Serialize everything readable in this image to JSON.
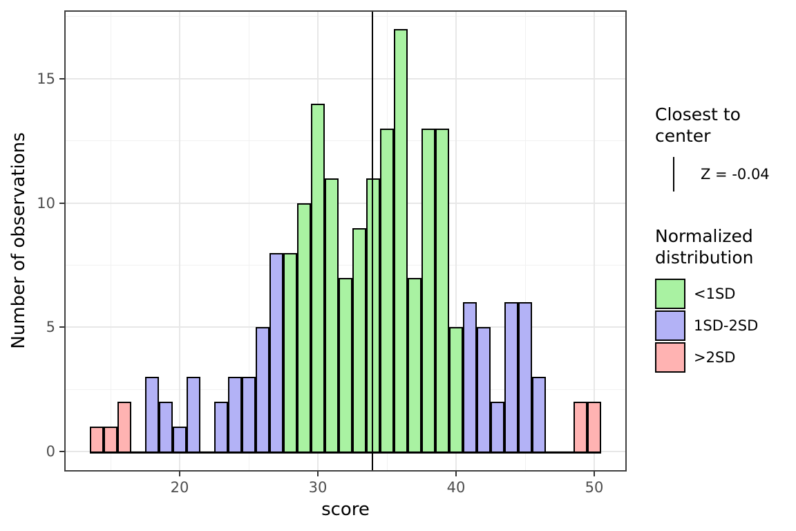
{
  "chart_data": {
    "type": "bar",
    "subtype": "histogram",
    "title": "",
    "xlabel": "score",
    "ylabel": "Number of observations",
    "x_ticks": [
      20,
      30,
      40,
      50
    ],
    "y_ticks": [
      0,
      5,
      10,
      15
    ],
    "x_minor_gridlines": [
      15,
      25,
      35,
      45
    ],
    "y_minor_gridlines": [
      2.5,
      7.5,
      12.5,
      17.5
    ],
    "xlim": [
      11.65,
      52.35
    ],
    "ylim": [
      -0.8,
      17.75
    ],
    "binwidth": 1,
    "grid": "on",
    "legend_position": "right",
    "group_colors": {
      "<1SD": "#a9f2a2",
      "1SD-2SD": "#b3b2f6",
      ">2SD": "#ffb3b2"
    },
    "bars": [
      {
        "x": 14,
        "n": 1,
        "g": ">2SD"
      },
      {
        "x": 15,
        "n": 1,
        "g": ">2SD"
      },
      {
        "x": 16,
        "n": 2,
        "g": ">2SD"
      },
      {
        "x": 18,
        "n": 3,
        "g": "1SD-2SD"
      },
      {
        "x": 19,
        "n": 2,
        "g": "1SD-2SD"
      },
      {
        "x": 20,
        "n": 1,
        "g": "1SD-2SD"
      },
      {
        "x": 21,
        "n": 3,
        "g": "1SD-2SD"
      },
      {
        "x": 23,
        "n": 2,
        "g": "1SD-2SD"
      },
      {
        "x": 24,
        "n": 3,
        "g": "1SD-2SD"
      },
      {
        "x": 25,
        "n": 3,
        "g": "1SD-2SD"
      },
      {
        "x": 26,
        "n": 5,
        "g": "1SD-2SD"
      },
      {
        "x": 27,
        "n": 8,
        "g": "1SD-2SD"
      },
      {
        "x": 28,
        "n": 8,
        "g": "<1SD"
      },
      {
        "x": 29,
        "n": 10,
        "g": "<1SD"
      },
      {
        "x": 30,
        "n": 14,
        "g": "<1SD"
      },
      {
        "x": 31,
        "n": 11,
        "g": "<1SD"
      },
      {
        "x": 32,
        "n": 7,
        "g": "<1SD"
      },
      {
        "x": 33,
        "n": 9,
        "g": "<1SD"
      },
      {
        "x": 34,
        "n": 11,
        "g": "<1SD"
      },
      {
        "x": 35,
        "n": 13,
        "g": "<1SD"
      },
      {
        "x": 36,
        "n": 17,
        "g": "<1SD"
      },
      {
        "x": 37,
        "n": 7,
        "g": "<1SD"
      },
      {
        "x": 38,
        "n": 13,
        "g": "<1SD"
      },
      {
        "x": 39,
        "n": 13,
        "g": "<1SD"
      },
      {
        "x": 40,
        "n": 5,
        "g": "<1SD"
      },
      {
        "x": 41,
        "n": 6,
        "g": "1SD-2SD"
      },
      {
        "x": 42,
        "n": 5,
        "g": "1SD-2SD"
      },
      {
        "x": 43,
        "n": 2,
        "g": "1SD-2SD"
      },
      {
        "x": 44,
        "n": 6,
        "g": "1SD-2SD"
      },
      {
        "x": 45,
        "n": 6,
        "g": "1SD-2SD"
      },
      {
        "x": 46,
        "n": 3,
        "g": "1SD-2SD"
      },
      {
        "x": 49,
        "n": 2,
        "g": ">2SD"
      },
      {
        "x": 50,
        "n": 2,
        "g": ">2SD"
      }
    ],
    "vline": {
      "x": 33.95,
      "color": "#000000"
    },
    "legend_vline": {
      "title": "Closest to center",
      "label": "Z = -0.04"
    },
    "legend_fill": {
      "title": "Normalized distribution",
      "entries": [
        {
          "label": "<1SD",
          "color": "#a9f2a2"
        },
        {
          "label": "1SD-2SD",
          "color": "#b3b2f6"
        },
        {
          "label": ">2SD",
          "color": "#ffb3b2"
        }
      ]
    }
  },
  "colors": {
    "background": "#ffffff",
    "panel_border": "#3f3f3f",
    "grid_major": "#e7e7e7",
    "grid_minor": "#f1f1f1",
    "tick_text": "#4d4d4d",
    "bar_stroke": "#000000"
  }
}
